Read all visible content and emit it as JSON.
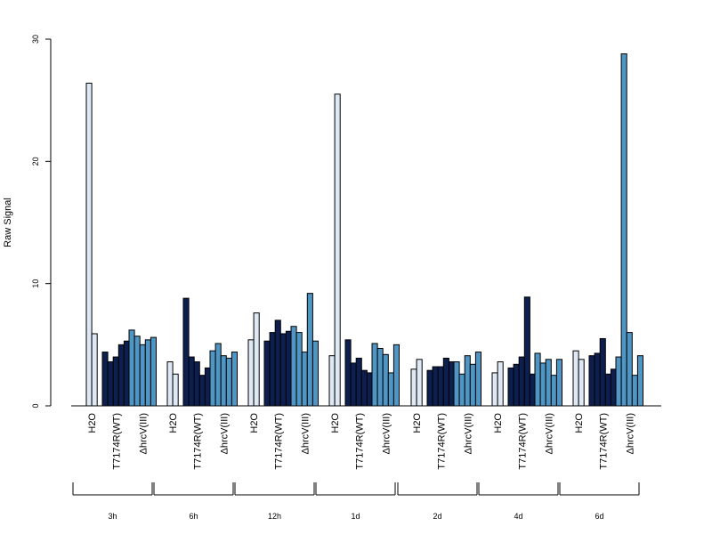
{
  "chart_data": {
    "type": "bar",
    "ylabel": "Raw Signal",
    "ylim": [
      0,
      30
    ],
    "yticks": [
      0,
      10,
      20,
      30
    ],
    "grid": false,
    "legend": "none",
    "subgroup_labels": [
      "H2O",
      "T7174R(WT)",
      "ΔhrcV(III)"
    ],
    "subgroup_colors": [
      "#dee9f5",
      "#0c1f4f",
      "#4f96c5"
    ],
    "groups": [
      {
        "label": "3h",
        "subgroups": [
          [
            26.4,
            5.9
          ],
          [
            4.4,
            3.6,
            4.0,
            5.0,
            5.3
          ],
          [
            6.2,
            5.7,
            5.0,
            5.4,
            5.6
          ]
        ]
      },
      {
        "label": "6h",
        "subgroups": [
          [
            3.6,
            2.6
          ],
          [
            8.8,
            4.0,
            3.6,
            2.5,
            3.1
          ],
          [
            4.5,
            5.1,
            4.1,
            3.9,
            4.4
          ]
        ]
      },
      {
        "label": "12h",
        "subgroups": [
          [
            5.4,
            7.6
          ],
          [
            5.3,
            6.0,
            7.0,
            5.9,
            6.1
          ],
          [
            6.5,
            6.0,
            4.4,
            9.2,
            5.3
          ]
        ]
      },
      {
        "label": "1d",
        "subgroups": [
          [
            4.1,
            25.5
          ],
          [
            5.4,
            3.5,
            3.9,
            2.9,
            2.7
          ],
          [
            5.1,
            4.7,
            4.2,
            2.7,
            5.0
          ]
        ]
      },
      {
        "label": "2d",
        "subgroups": [
          [
            3.0,
            3.8
          ],
          [
            2.9,
            3.2,
            3.2,
            3.9,
            3.6
          ],
          [
            3.6,
            2.6,
            4.1,
            3.4,
            4.4
          ]
        ]
      },
      {
        "label": "4d",
        "subgroups": [
          [
            2.7,
            3.6
          ],
          [
            3.1,
            3.4,
            4.0,
            8.9,
            2.6
          ],
          [
            4.3,
            3.5,
            3.8,
            2.5,
            3.8
          ]
        ]
      },
      {
        "label": "6d",
        "subgroups": [
          [
            4.5,
            3.8
          ],
          [
            4.1,
            4.3,
            5.5,
            2.6,
            3.0
          ],
          [
            4.0,
            28.8,
            6.0,
            2.5,
            4.1
          ]
        ]
      }
    ]
  }
}
